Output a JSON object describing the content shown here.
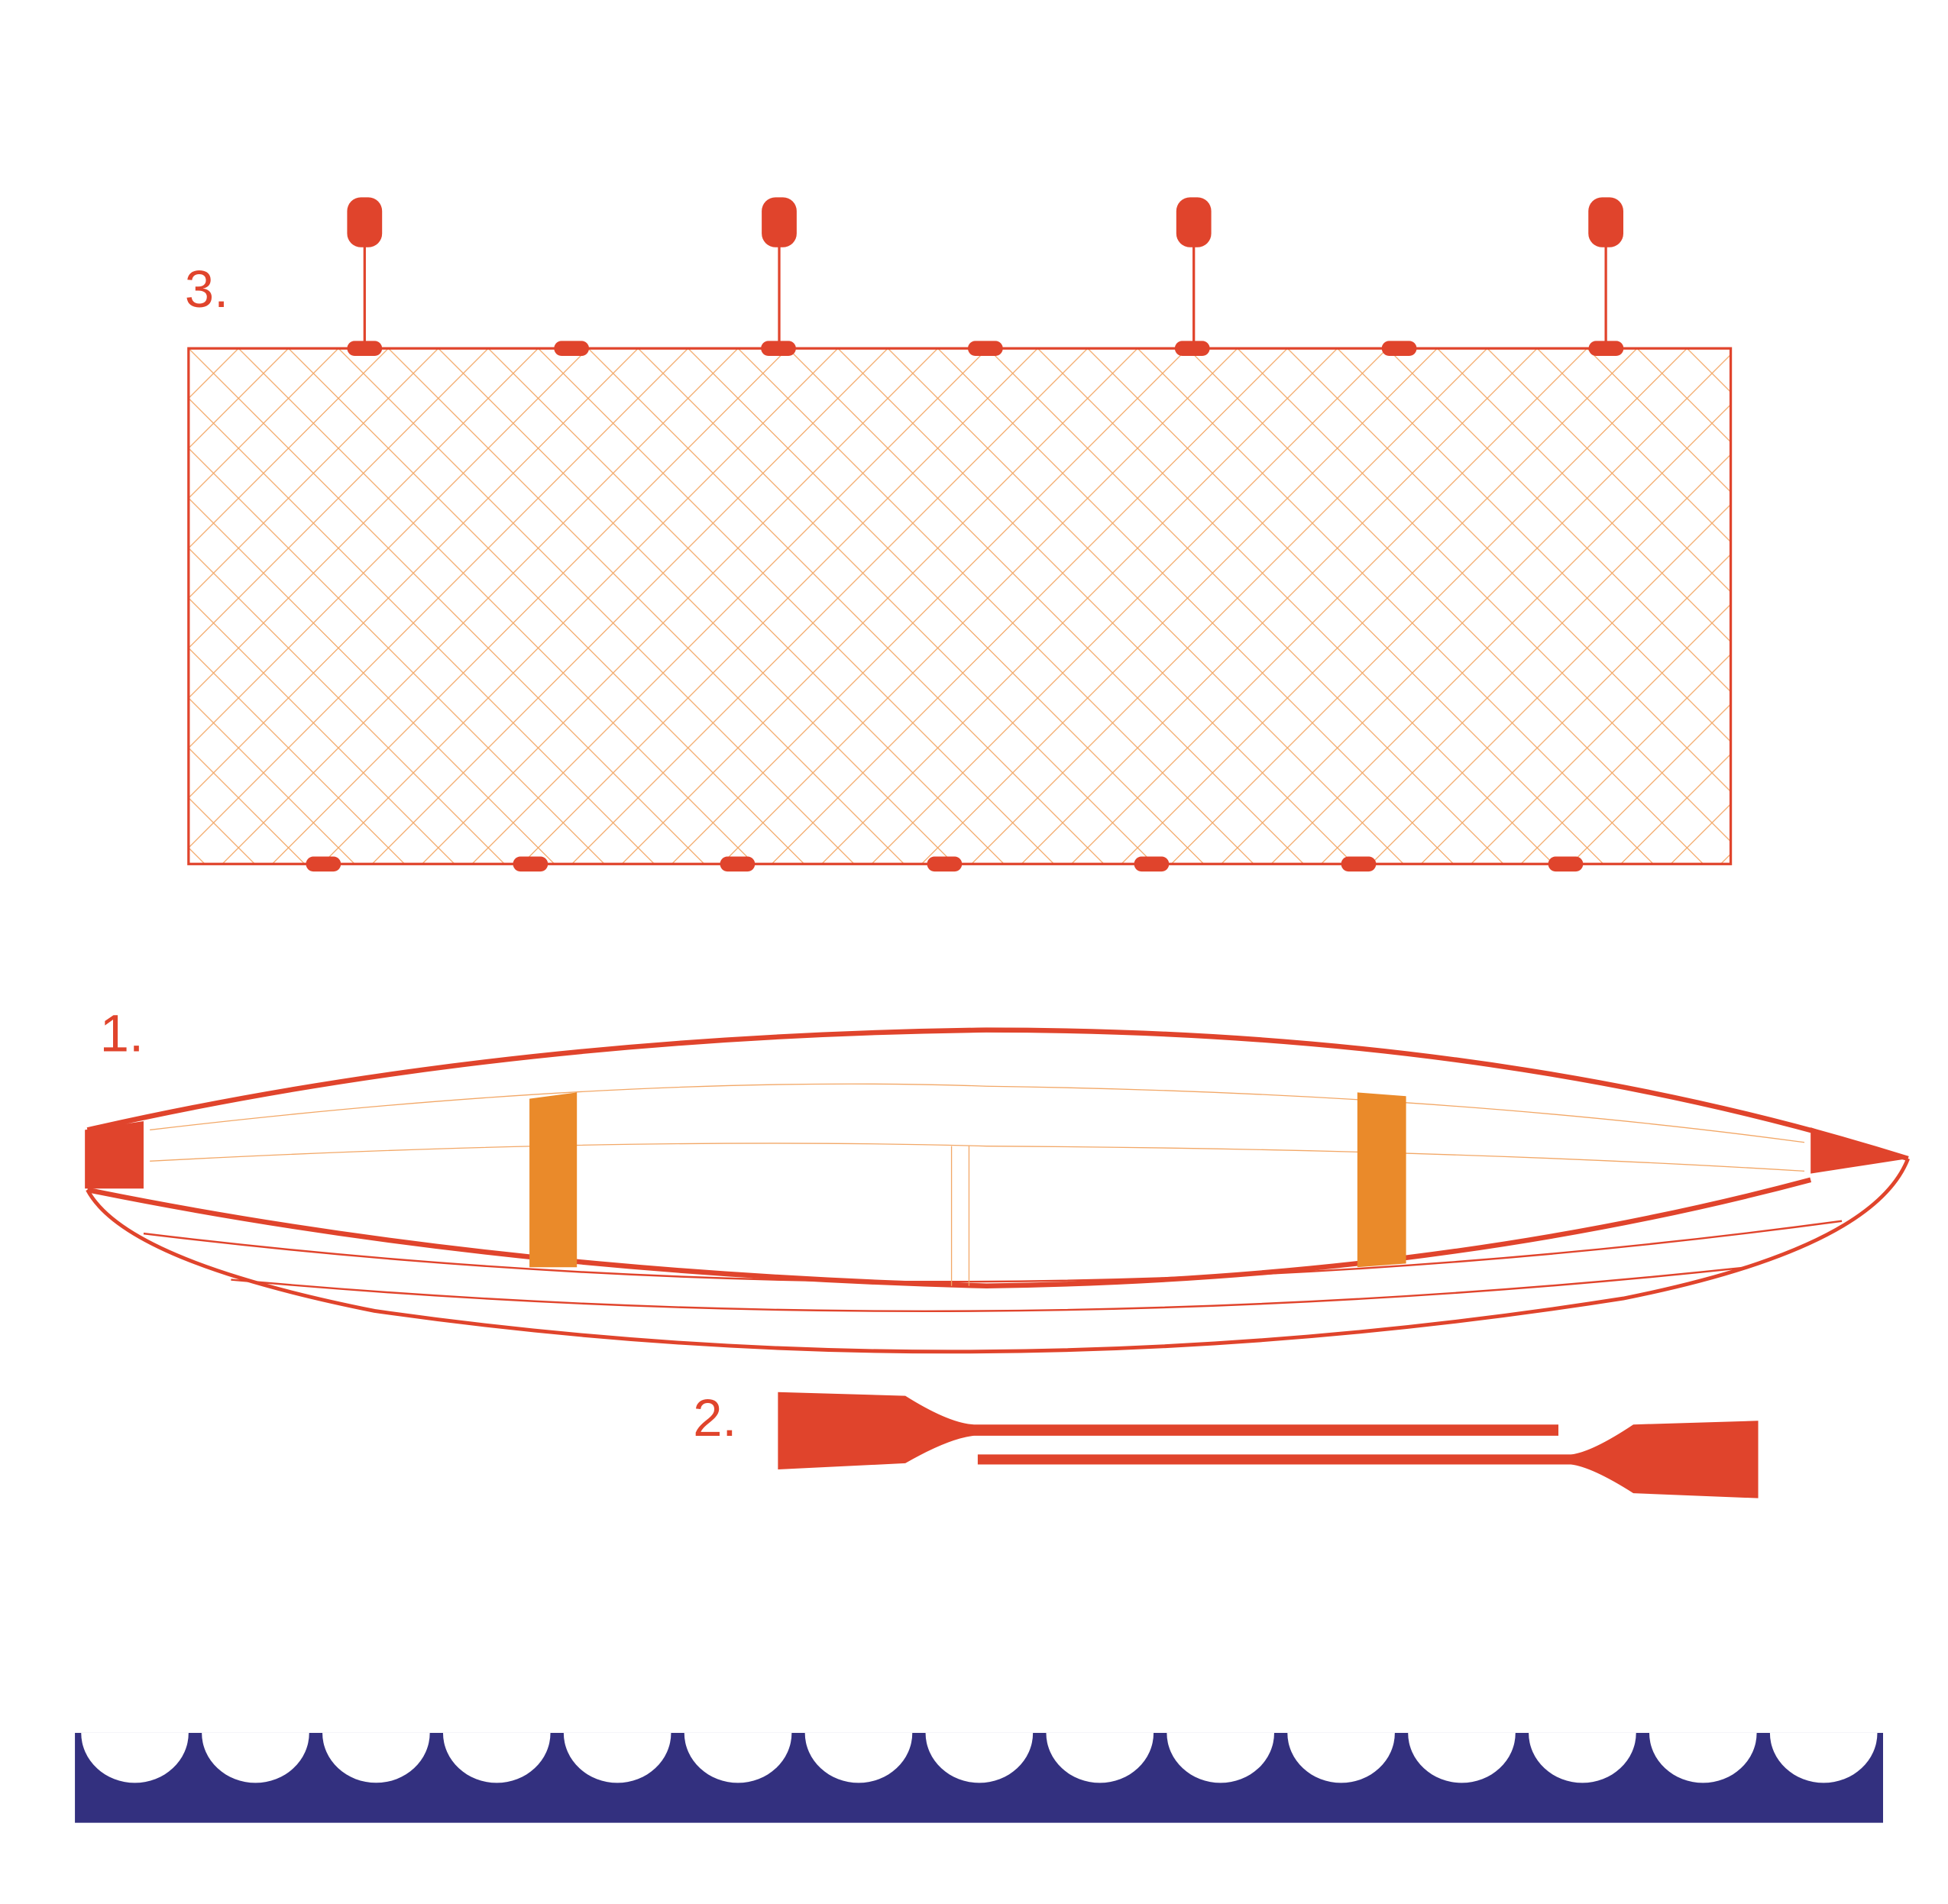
{
  "labels": {
    "net": "3.",
    "canoe": "1.",
    "oars": "2."
  }
}
